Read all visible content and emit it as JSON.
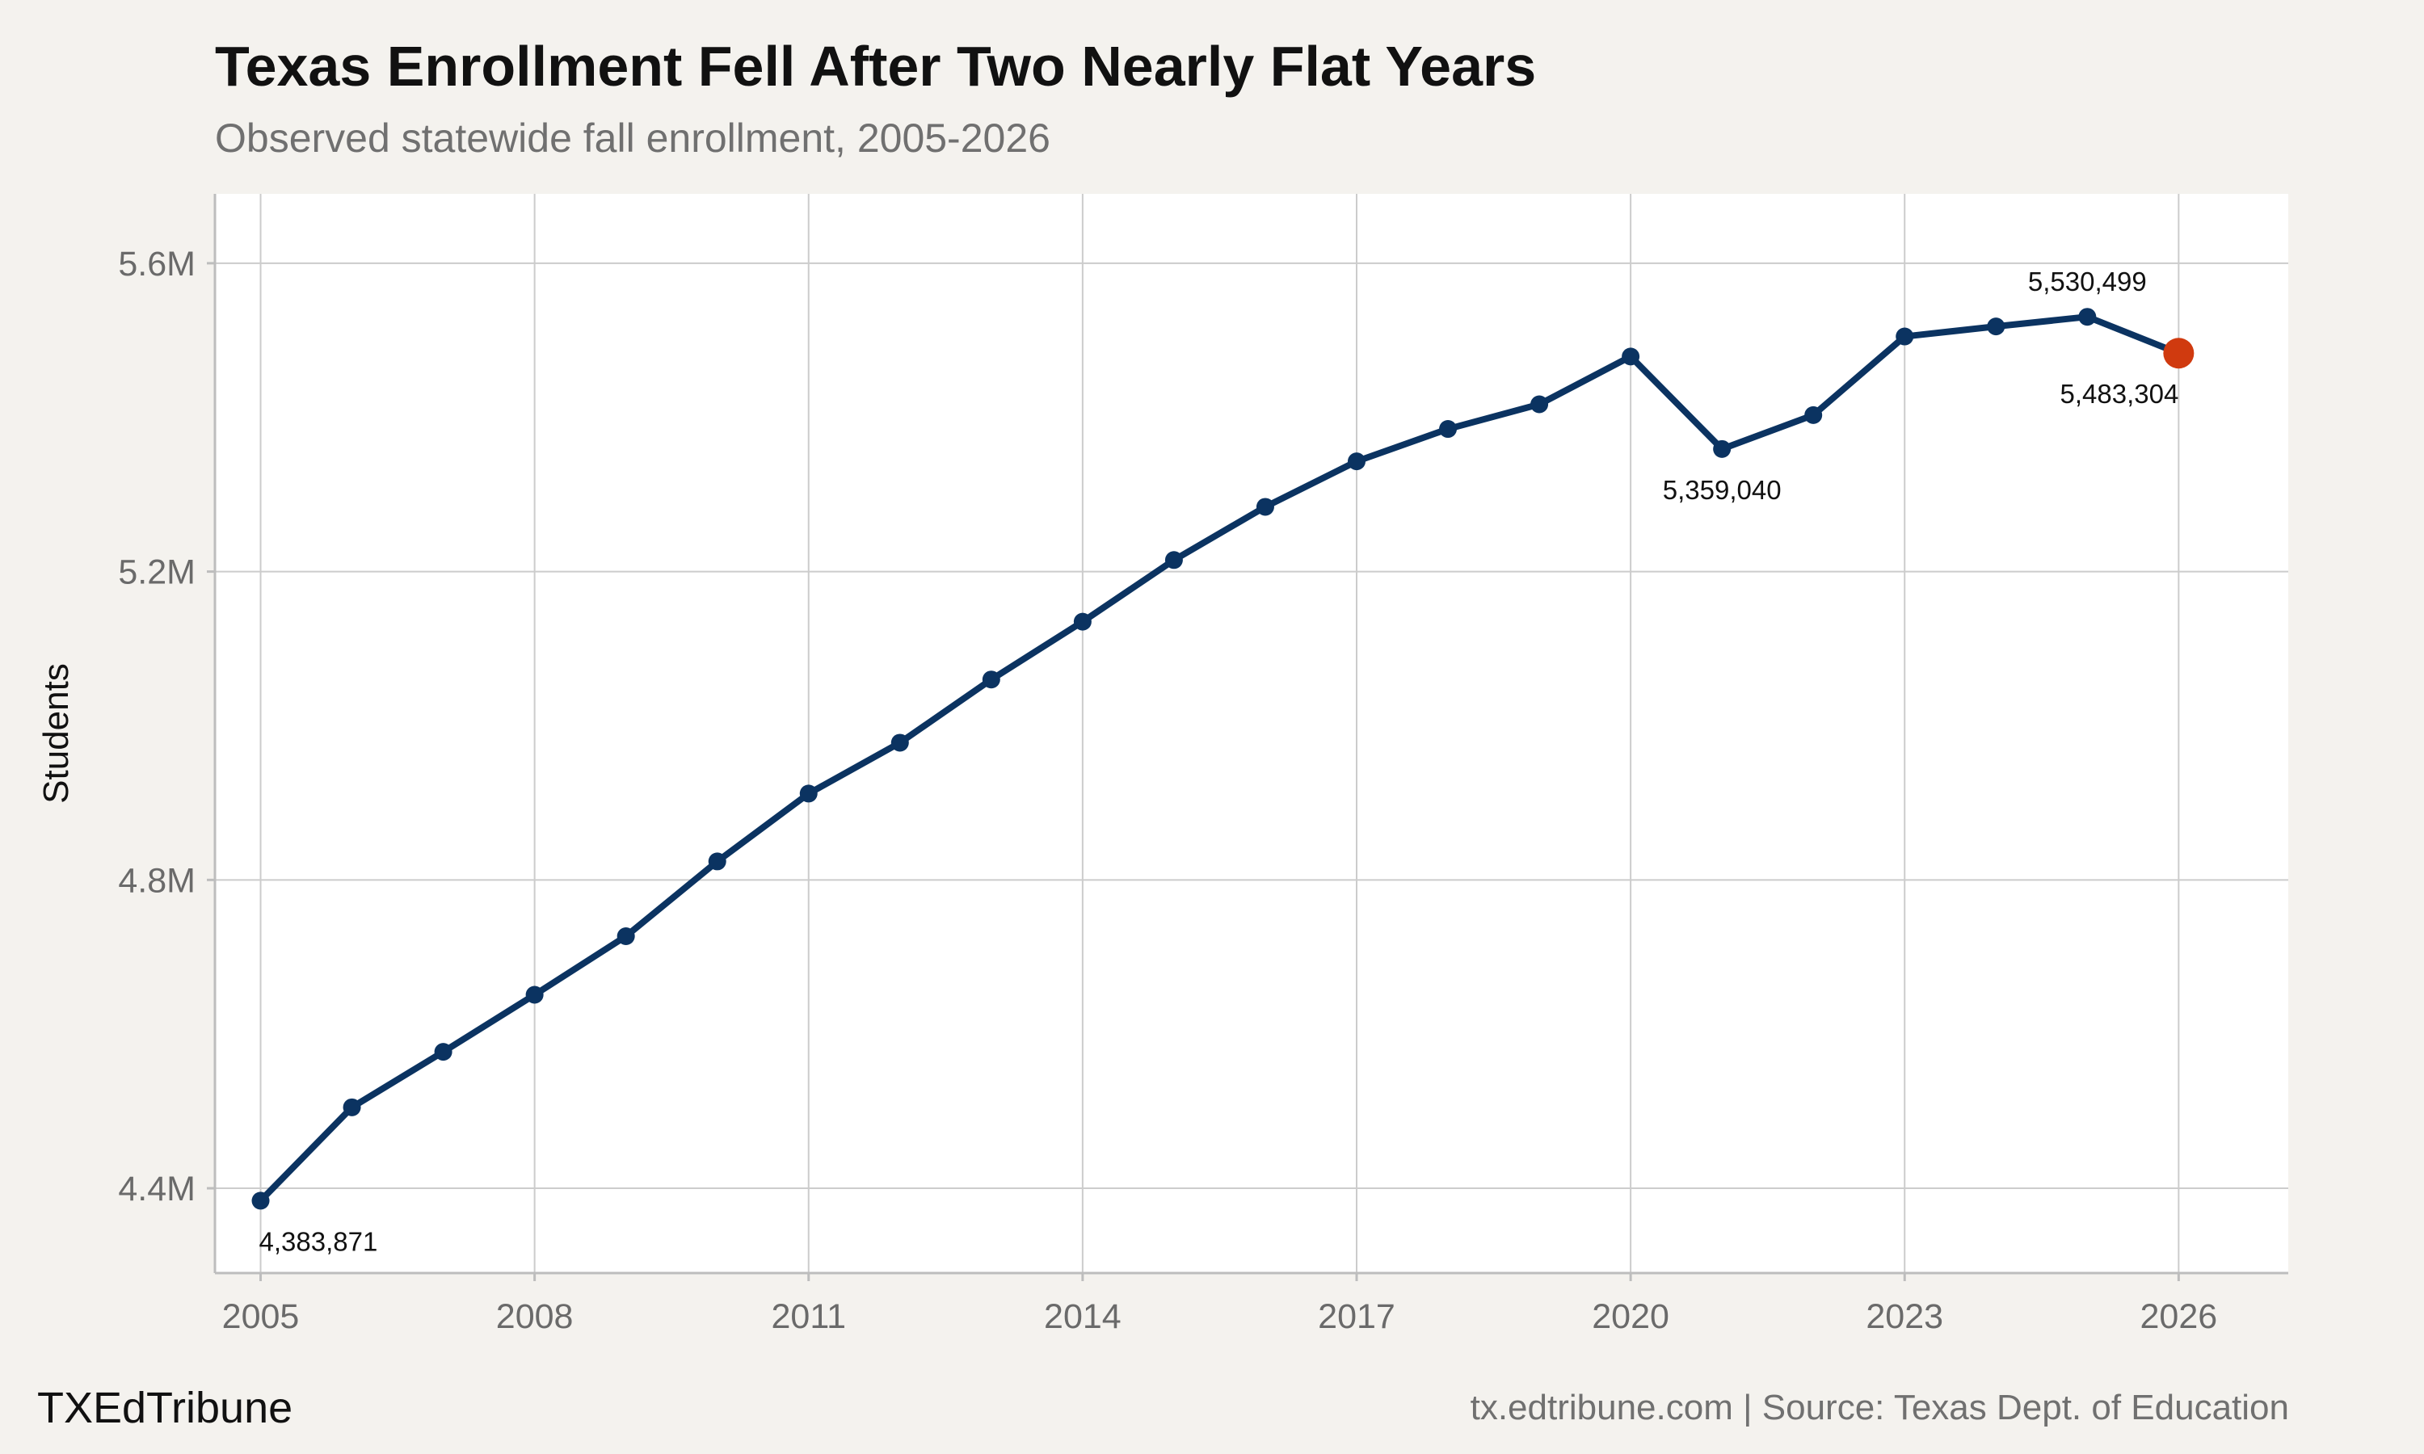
{
  "header": {
    "title": "Texas Enrollment Fell After Two Nearly Flat Years",
    "subtitle": "Observed statewide fall enrollment, 2005-2026"
  },
  "footer": {
    "brand": "TXEdTribune",
    "source": "tx.edtribune.com | Source: Texas Dept. of Education"
  },
  "colors": {
    "background": "#f4f2ee",
    "plot_background": "#ffffff",
    "line": "#0b3361",
    "highlight": "#d03a0f",
    "grid": "#cccccc"
  },
  "chart_data": {
    "type": "line",
    "title": "Texas Enrollment Fell After Two Nearly Flat Years",
    "subtitle": "Observed statewide fall enrollment, 2005-2026",
    "xlabel": "",
    "ylabel": "Students",
    "xlim": [
      2004.5,
      2027.2
    ],
    "ylim": [
      4290000,
      5690000
    ],
    "grid": true,
    "x_ticks": [
      2005,
      2008,
      2011,
      2014,
      2017,
      2020,
      2023,
      2026
    ],
    "x_tick_labels": [
      "2005",
      "2008",
      "2011",
      "2014",
      "2017",
      "2020",
      "2023",
      "2026"
    ],
    "y_ticks": [
      4400000,
      4800000,
      5200000,
      5600000
    ],
    "y_tick_labels": [
      "4.4M",
      "4.8M",
      "5.2M",
      "5.6M"
    ],
    "series": [
      {
        "x": [
          2005,
          2006,
          2007,
          2008,
          2009,
          2010,
          2011,
          2012,
          2013,
          2014,
          2015,
          2016,
          2017,
          2018,
          2019,
          2020,
          2021,
          2022,
          2023,
          2024,
          2025,
          2026
        ],
        "values": [
          4383871,
          4505000,
          4577000,
          4651000,
          4727000,
          4824000,
          4912000,
          4978000,
          5060000,
          5135000,
          5215000,
          5284000,
          5343000,
          5385000,
          5417000,
          5479000,
          5359040,
          5403000,
          5505000,
          5518000,
          5530499,
          5483304
        ]
      }
    ],
    "highlight_point": {
      "x": 2026,
      "value": 5483304
    },
    "annotations": [
      {
        "x": 2005,
        "value": 4383871,
        "text": "4,383,871",
        "position": "below"
      },
      {
        "x": 2021,
        "value": 5359040,
        "text": "5,359,040",
        "position": "below"
      },
      {
        "x": 2025,
        "value": 5530499,
        "text": "5,530,499",
        "position": "above"
      },
      {
        "x": 2026,
        "value": 5483304,
        "text": "5,483,304",
        "position": "below"
      }
    ]
  }
}
